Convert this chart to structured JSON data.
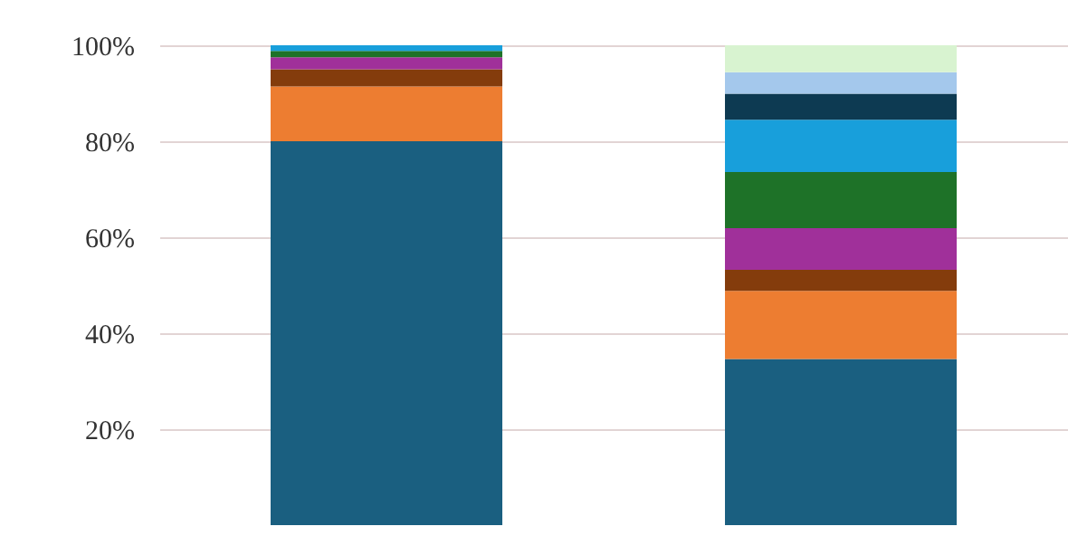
{
  "chart_data": {
    "type": "bar",
    "stacked": true,
    "categories": [
      null,
      null
    ],
    "series": [
      {
        "color": "#1a5f80",
        "values": [
          80,
          34.6
        ]
      },
      {
        "color": "#ed7d31",
        "values": [
          11.4,
          14.2
        ]
      },
      {
        "color": "#843c0c",
        "values": [
          3.6,
          4.4
        ]
      },
      {
        "color": "#a0309a",
        "values": [
          2.5,
          8.7
        ]
      },
      {
        "color": "#1e7228",
        "values": [
          1.3,
          11.7
        ]
      },
      {
        "color": "#189fdb",
        "values": [
          1.2,
          10.9
        ]
      },
      {
        "color": "#0d3a52",
        "values": [
          null,
          5.4
        ]
      },
      {
        "color": "#a4c8ec",
        "values": [
          null,
          4.5
        ]
      },
      {
        "color": "#d8f3d0",
        "values": [
          null,
          5.6
        ]
      }
    ],
    "ylim": [
      0,
      100
    ],
    "yticks": [
      {
        "value": 20,
        "label": "20%"
      },
      {
        "value": 40,
        "label": "40%"
      },
      {
        "value": 60,
        "label": "60%"
      },
      {
        "value": 80,
        "label": "80%"
      },
      {
        "value": 100,
        "label": "100%"
      }
    ],
    "grid": "y",
    "tick_labels": "y"
  }
}
